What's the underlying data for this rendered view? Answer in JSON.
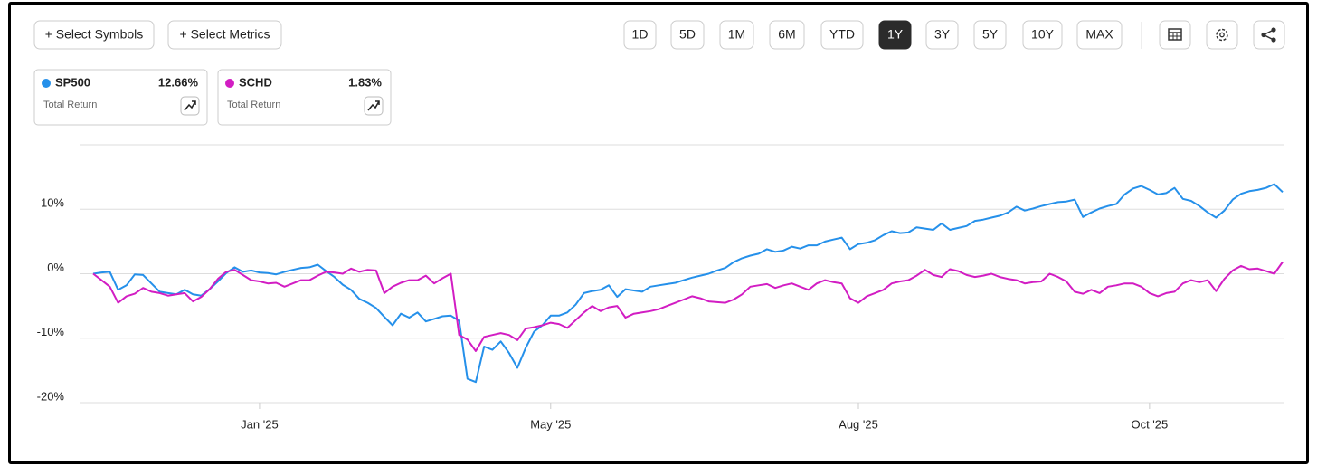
{
  "toolbar": {
    "add_buttons": [
      "+ Select Symbols",
      "+ Select Metrics"
    ],
    "ranges": [
      "1D",
      "5D",
      "1M",
      "6M",
      "YTD",
      "1Y",
      "3Y",
      "5Y",
      "10Y",
      "MAX"
    ],
    "active_range": "1Y"
  },
  "legend_cards": [
    {
      "metric": "Total Return",
      "return": "12.66%"
    },
    {
      "metric": "Total Return",
      "return": "1.83%"
    }
  ],
  "chart_data": {
    "type": "line",
    "categories": [
      null,
      null,
      null,
      null,
      null,
      null,
      null,
      null,
      null,
      null,
      null,
      null,
      null,
      null,
      null,
      null,
      null,
      null,
      null,
      null,
      "Jan '25",
      null,
      null,
      null,
      null,
      null,
      null,
      null,
      null,
      null,
      null,
      null,
      null,
      null,
      null,
      null,
      null,
      null,
      null,
      null,
      null,
      null,
      null,
      null,
      null,
      null,
      null,
      null,
      null,
      null,
      null,
      null,
      null,
      null,
      null,
      "May '25",
      null,
      null,
      null,
      null,
      null,
      null,
      null,
      null,
      null,
      null,
      null,
      null,
      null,
      null,
      null,
      null,
      null,
      null,
      null,
      null,
      null,
      null,
      null,
      null,
      null,
      null,
      null,
      null,
      null,
      null,
      null,
      null,
      null,
      null,
      null,
      null,
      "Aug '25",
      null,
      null,
      null,
      null,
      null,
      null,
      null,
      null,
      null,
      null,
      null,
      null,
      null,
      null,
      null,
      null,
      null,
      null,
      null,
      null,
      null,
      null,
      null,
      null,
      null,
      null,
      null,
      null,
      null,
      null,
      null,
      null,
      null,
      null,
      "Oct '25",
      null,
      null,
      null,
      null,
      null,
      null,
      null,
      null,
      null,
      null,
      null,
      null,
      null,
      null,
      null,
      null
    ],
    "series": [
      {
        "name": "SP500",
        "color": "#2590ea",
        "values": [
          0,
          0.2,
          0.3,
          -2.5,
          -1.8,
          -0.1,
          -0.2,
          -1.5,
          -2.8,
          -3.0,
          -3.2,
          -2.5,
          -3.2,
          -3.4,
          -2.4,
          -1.2,
          0.1,
          1.0,
          0.3,
          0.5,
          0.2,
          0.1,
          -0.1,
          0.3,
          0.6,
          0.9,
          1.0,
          1.4,
          0.4,
          -0.5,
          -1.7,
          -2.5,
          -3.9,
          -4.5,
          -5.3,
          -6.7,
          -8.0,
          -6.2,
          -6.8,
          -6.0,
          -7.4,
          -7.0,
          -6.6,
          -6.5,
          -7.3,
          -16.3,
          -16.8,
          -11.3,
          -11.8,
          -10.5,
          -12.3,
          -14.6,
          -11.5,
          -9.0,
          -8.0,
          -6.5,
          -6.5,
          -6.0,
          -4.8,
          -3.0,
          -2.7,
          -2.5,
          -1.8,
          -3.6,
          -2.4,
          -2.6,
          -2.8,
          -2.0,
          -1.8,
          -1.6,
          -1.4,
          -1.0,
          -0.6,
          -0.3,
          0,
          0.5,
          0.9,
          1.8,
          2.4,
          2.8,
          3.1,
          3.8,
          3.4,
          3.6,
          4.2,
          3.9,
          4.4,
          4.4,
          5.0,
          5.3,
          5.6,
          3.8,
          4.6,
          4.8,
          5.2,
          6.0,
          6.6,
          6.3,
          6.4,
          7.2,
          7.0,
          6.8,
          7.8,
          6.8,
          7.1,
          7.4,
          8.2,
          8.4,
          8.7,
          9.0,
          9.5,
          10.4,
          9.8,
          10.1,
          10.5,
          10.8,
          11.1,
          11.2,
          11.5,
          8.8,
          9.5,
          10.1,
          10.5,
          10.8,
          12.3,
          13.2,
          13.6,
          13.0,
          12.3,
          12.5,
          13.3,
          11.6,
          11.3,
          10.5,
          9.5,
          8.7,
          9.8,
          11.5,
          12.4,
          12.8,
          13.0,
          13.3,
          13.9,
          12.66
        ]
      },
      {
        "name": "SCHD",
        "color": "#d21dc3",
        "values": [
          0,
          -1.0,
          -2.0,
          -4.5,
          -3.5,
          -3.1,
          -2.2,
          -2.8,
          -3.0,
          -3.4,
          -3.2,
          -3.0,
          -4.3,
          -3.6,
          -2.4,
          -0.8,
          0.3,
          0.6,
          -0.2,
          -1.0,
          -1.2,
          -1.5,
          -1.4,
          -2.0,
          -1.5,
          -1.0,
          -1.0,
          -0.3,
          0.3,
          0.2,
          0,
          0.8,
          0.3,
          0.6,
          0.5,
          -3.0,
          -2.0,
          -1.4,
          -1.0,
          -1.0,
          -0.3,
          -1.5,
          -0.7,
          0,
          -9.5,
          -10.2,
          -12.0,
          -9.8,
          -9.5,
          -9.2,
          -9.5,
          -10.3,
          -8.5,
          -8.3,
          -8.0,
          -7.6,
          -7.8,
          -8.4,
          -7.2,
          -6.0,
          -5.0,
          -5.8,
          -5.2,
          -5.0,
          -6.8,
          -6.2,
          -6.0,
          -5.8,
          -5.5,
          -5.0,
          -4.5,
          -4.0,
          -3.5,
          -3.8,
          -4.3,
          -4.4,
          -4.5,
          -4.0,
          -3.2,
          -2.0,
          -1.8,
          -1.6,
          -2.2,
          -1.8,
          -1.5,
          -2.0,
          -2.5,
          -1.5,
          -1.0,
          -1.3,
          -1.5,
          -3.8,
          -4.5,
          -3.5,
          -3.0,
          -2.5,
          -1.5,
          -1.2,
          -1.0,
          -0.3,
          0.6,
          -0.2,
          -0.5,
          0.7,
          0.4,
          -0.2,
          -0.5,
          -0.3,
          0,
          -0.5,
          -0.8,
          -1.0,
          -1.5,
          -1.3,
          -1.2,
          0,
          -0.5,
          -1.2,
          -2.8,
          -3.1,
          -2.5,
          -3.0,
          -2.0,
          -1.8,
          -1.5,
          -1.5,
          -2.0,
          -3.0,
          -3.5,
          -3.0,
          -2.8,
          -1.5,
          -1.0,
          -1.3,
          -1.0,
          -2.7,
          -0.8,
          0.5,
          1.2,
          0.7,
          0.8,
          0.4,
          0,
          1.83
        ]
      }
    ],
    "ylim": [
      -20,
      20
    ],
    "yticks": [
      {
        "value": -20,
        "label": "-20%"
      },
      {
        "value": -10,
        "label": "-10%"
      },
      {
        "value": 0,
        "label": "0%"
      },
      {
        "value": 10,
        "label": "10%"
      }
    ],
    "grid": true
  }
}
